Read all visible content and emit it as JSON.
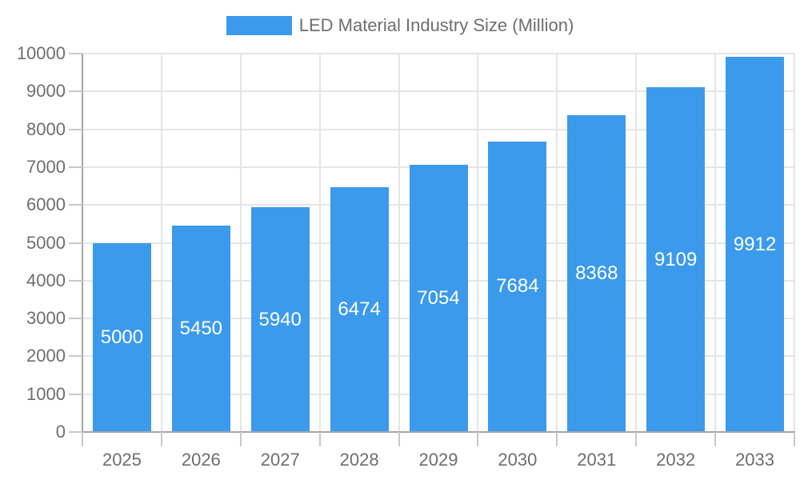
{
  "chart_data": {
    "type": "bar",
    "title": "LED Material Industry Size (Million)",
    "categories": [
      "2025",
      "2026",
      "2027",
      "2028",
      "2029",
      "2030",
      "2031",
      "2032",
      "2033"
    ],
    "values": [
      5000,
      5450,
      5940,
      6474,
      7054,
      7684,
      8368,
      9109,
      9912
    ],
    "y_ticks": [
      "0",
      "1000",
      "2000",
      "3000",
      "4000",
      "5000",
      "6000",
      "7000",
      "8000",
      "9000",
      "10000"
    ],
    "ylim": [
      0,
      10000
    ],
    "ytick_step": 1000,
    "xlabel": "",
    "ylabel": "",
    "grid": true,
    "legend_position": "top",
    "bar_labels_inside": true,
    "colors": {
      "bar": "#3c9aec",
      "text": "#6e6e6e",
      "bar_label": "#ffffff",
      "grid": "#e6e6e6",
      "axis": "#a6a6a6",
      "tick": "#c9c9c9",
      "background": "#ffffff"
    }
  }
}
